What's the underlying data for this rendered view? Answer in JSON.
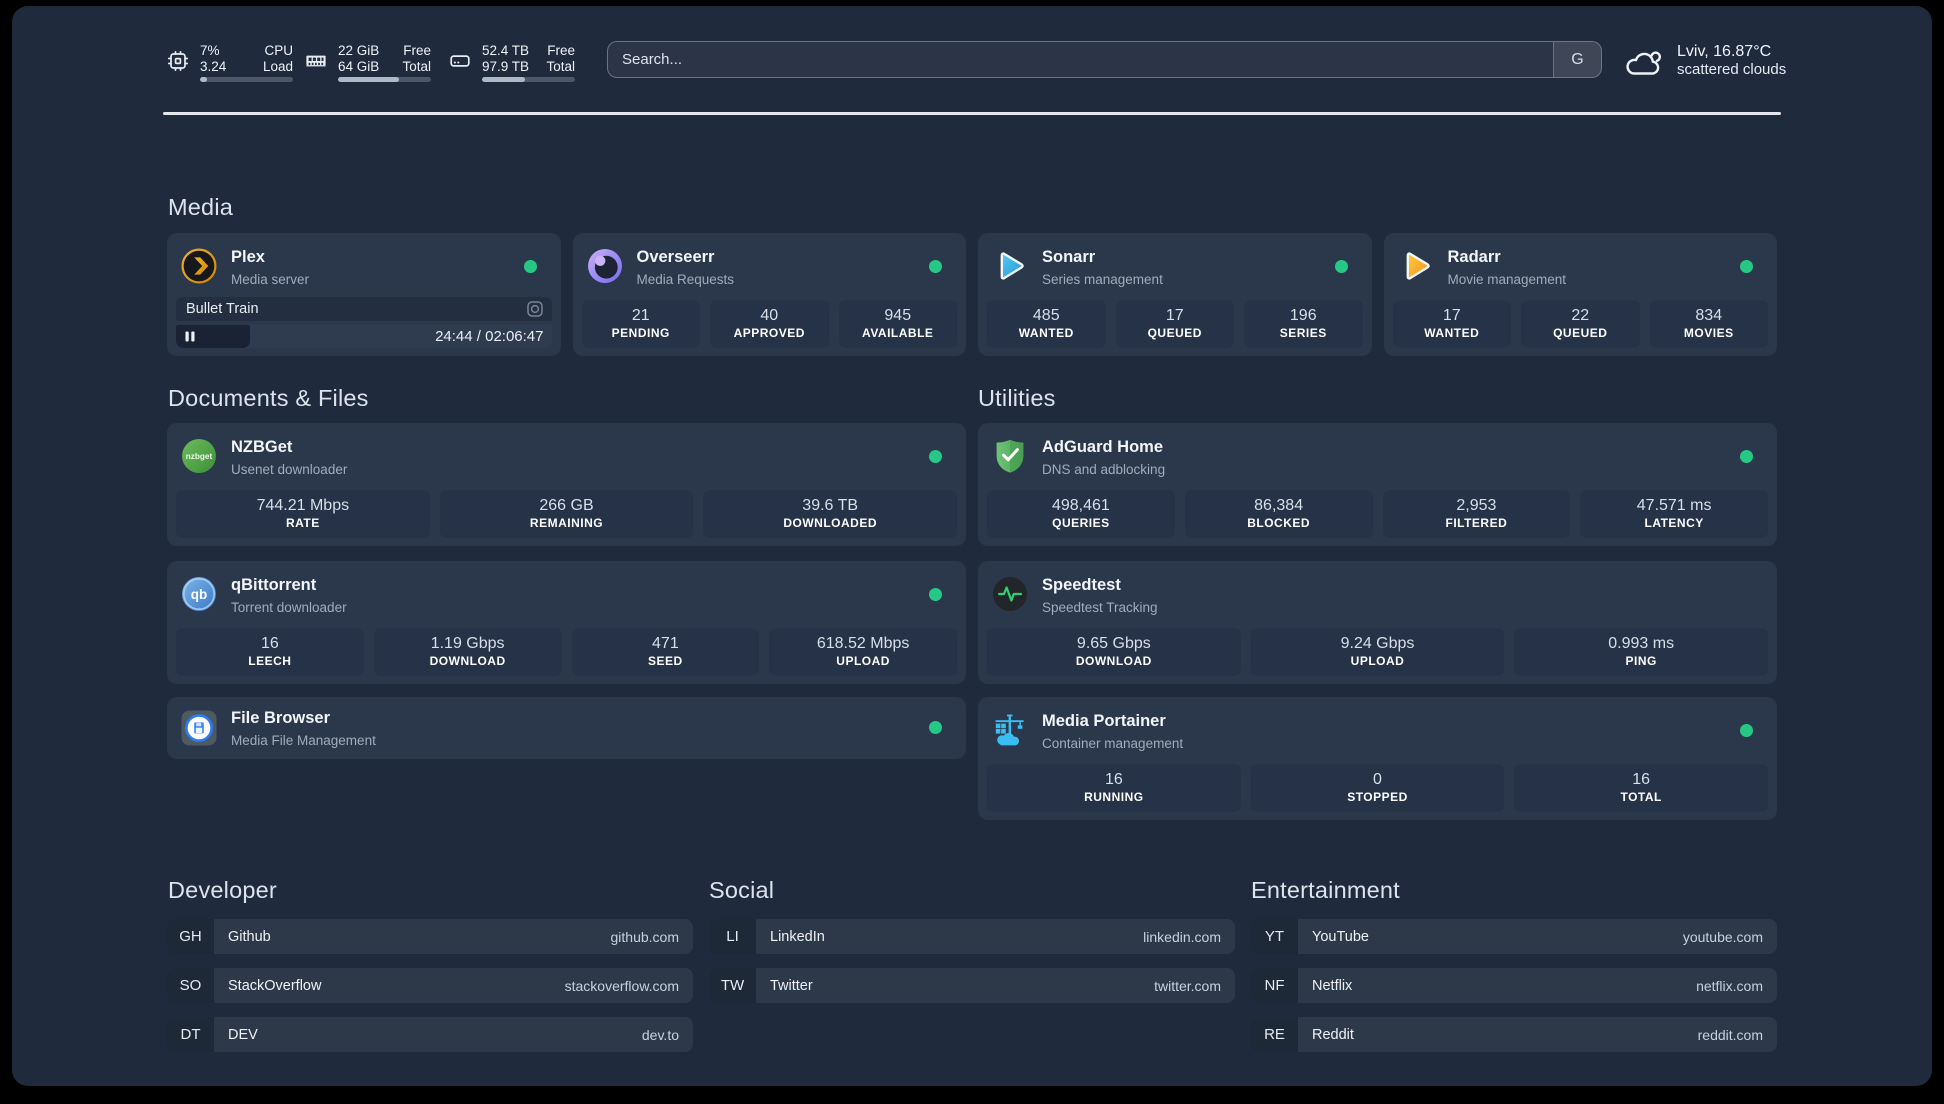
{
  "colors": {
    "status_green": "#25c985",
    "background": "#202a3d",
    "card": "#2b374b",
    "separator": "#e3e7ed"
  },
  "topbar": {
    "resources": [
      {
        "icon": "cpu-icon",
        "left_top": "7%",
        "left_bottom": "3.24",
        "right_top": "CPU",
        "right_bottom": "Load",
        "progress_pct": 7
      },
      {
        "icon": "memory-icon",
        "left_top": "22 GiB",
        "left_bottom": "64 GiB",
        "right_top": "Free",
        "right_bottom": "Total",
        "progress_pct": 66
      },
      {
        "icon": "disk-icon",
        "left_top": "52.4 TB",
        "left_bottom": "97.9 TB",
        "right_top": "Free",
        "right_bottom": "Total",
        "progress_pct": 46
      }
    ],
    "search": {
      "placeholder": "Search...",
      "button_label": "G"
    },
    "weather": {
      "icon": "cloud-icon",
      "location": "Lviv, 16.87°C",
      "condition": "scattered clouds"
    }
  },
  "groups": {
    "media": {
      "title": "Media",
      "cards": [
        {
          "name": "Plex",
          "description": "Media server",
          "icon": "plex-icon",
          "online": true,
          "now_playing": {
            "title": "Bullet Train",
            "time_display": "24:44 / 02:06:47",
            "progress_pct": 19.6
          }
        },
        {
          "name": "Overseerr",
          "description": "Media Requests",
          "icon": "overseerr-icon",
          "online": true,
          "stats": [
            {
              "value": "21",
              "label": "PENDING"
            },
            {
              "value": "40",
              "label": "APPROVED"
            },
            {
              "value": "945",
              "label": "AVAILABLE"
            }
          ]
        },
        {
          "name": "Sonarr",
          "description": "Series management",
          "icon": "sonarr-icon",
          "online": true,
          "stats": [
            {
              "value": "485",
              "label": "WANTED"
            },
            {
              "value": "17",
              "label": "QUEUED"
            },
            {
              "value": "196",
              "label": "SERIES"
            }
          ]
        },
        {
          "name": "Radarr",
          "description": "Movie management",
          "icon": "radarr-icon",
          "online": true,
          "stats": [
            {
              "value": "17",
              "label": "WANTED"
            },
            {
              "value": "22",
              "label": "QUEUED"
            },
            {
              "value": "834",
              "label": "MOVIES"
            }
          ]
        }
      ]
    },
    "documents": {
      "title": "Documents & Files",
      "cards": [
        {
          "name": "NZBGet",
          "description": "Usenet downloader",
          "icon": "nzbget-icon",
          "online": true,
          "stats": [
            {
              "value": "744.21 Mbps",
              "label": "RATE"
            },
            {
              "value": "266 GB",
              "label": "REMAINING"
            },
            {
              "value": "39.6 TB",
              "label": "DOWNLOADED"
            }
          ]
        },
        {
          "name": "qBittorrent",
          "description": "Torrent downloader",
          "icon": "qbittorrent-icon",
          "online": true,
          "stats": [
            {
              "value": "16",
              "label": "LEECH"
            },
            {
              "value": "1.19 Gbps",
              "label": "DOWNLOAD"
            },
            {
              "value": "471",
              "label": "SEED"
            },
            {
              "value": "618.52 Mbps",
              "label": "UPLOAD"
            }
          ]
        },
        {
          "name": "File Browser",
          "description": "Media File Management",
          "icon": "filebrowser-icon",
          "online": true,
          "stats": []
        }
      ]
    },
    "utilities": {
      "title": "Utilities",
      "cards": [
        {
          "name": "AdGuard Home",
          "description": "DNS and adblocking",
          "icon": "adguard-icon",
          "online": true,
          "stats": [
            {
              "value": "498,461",
              "label": "QUERIES"
            },
            {
              "value": "86,384",
              "label": "BLOCKED"
            },
            {
              "value": "2,953",
              "label": "FILTERED"
            },
            {
              "value": "47.571 ms",
              "label": "LATENCY"
            }
          ]
        },
        {
          "name": "Speedtest",
          "description": "Speedtest Tracking",
          "icon": "speedtest-icon",
          "online": false,
          "stats": [
            {
              "value": "9.65 Gbps",
              "label": "DOWNLOAD"
            },
            {
              "value": "9.24 Gbps",
              "label": "UPLOAD"
            },
            {
              "value": "0.993 ms",
              "label": "PING"
            }
          ]
        },
        {
          "name": "Media Portainer",
          "description": "Container management",
          "icon": "portainer-icon",
          "online": true,
          "stats": [
            {
              "value": "16",
              "label": "RUNNING"
            },
            {
              "value": "0",
              "label": "STOPPED"
            },
            {
              "value": "16",
              "label": "TOTAL"
            }
          ]
        }
      ]
    }
  },
  "bookmarks": [
    {
      "title": "Developer",
      "items": [
        {
          "abbr": "GH",
          "name": "Github",
          "url": "github.com"
        },
        {
          "abbr": "SO",
          "name": "StackOverflow",
          "url": "stackoverflow.com"
        },
        {
          "abbr": "DT",
          "name": "DEV",
          "url": "dev.to"
        }
      ]
    },
    {
      "title": "Social",
      "items": [
        {
          "abbr": "LI",
          "name": "LinkedIn",
          "url": "linkedin.com"
        },
        {
          "abbr": "TW",
          "name": "Twitter",
          "url": "twitter.com"
        }
      ]
    },
    {
      "title": "Entertainment",
      "items": [
        {
          "abbr": "YT",
          "name": "YouTube",
          "url": "youtube.com"
        },
        {
          "abbr": "NF",
          "name": "Netflix",
          "url": "netflix.com"
        },
        {
          "abbr": "RE",
          "name": "Reddit",
          "url": "reddit.com"
        }
      ]
    }
  ]
}
